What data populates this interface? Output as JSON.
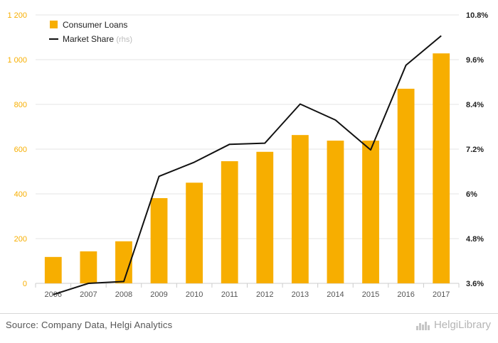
{
  "chart_data": {
    "type": "bar",
    "categories": [
      "2006",
      "2007",
      "2008",
      "2009",
      "2010",
      "2011",
      "2012",
      "2013",
      "2014",
      "2015",
      "2016",
      "2017"
    ],
    "series": [
      {
        "name": "Consumer Loans",
        "type": "bar",
        "axis": "left",
        "color": "#f7ae00",
        "values": [
          118,
          143,
          188,
          381,
          450,
          546,
          588,
          663,
          638,
          638,
          870,
          1028
        ]
      },
      {
        "name": "Market Share",
        "name_suffix": "(rhs)",
        "type": "line",
        "axis": "right",
        "color": "#111111",
        "values": [
          3.3,
          3.6,
          3.65,
          6.47,
          6.85,
          7.33,
          7.36,
          8.41,
          7.98,
          7.18,
          9.45,
          10.24
        ]
      }
    ],
    "y_left": {
      "ylim": [
        0,
        1200
      ],
      "ticks": [
        "0",
        "200",
        "400",
        "600",
        "800",
        "1 000",
        "1 200"
      ],
      "tick_color": "#f7ae00"
    },
    "y_right": {
      "ylim": [
        3.6,
        10.8
      ],
      "ticks": [
        "3.6%",
        "4.8%",
        "6%",
        "7.2%",
        "8.4%",
        "9.6%",
        "10.8%"
      ]
    },
    "grid": true,
    "legend_position": "top-left"
  },
  "footer": {
    "source": "Source: Company Data, Helgi Analytics",
    "brand": "HelgiLibrary",
    "brand_icon": "building-icon"
  }
}
